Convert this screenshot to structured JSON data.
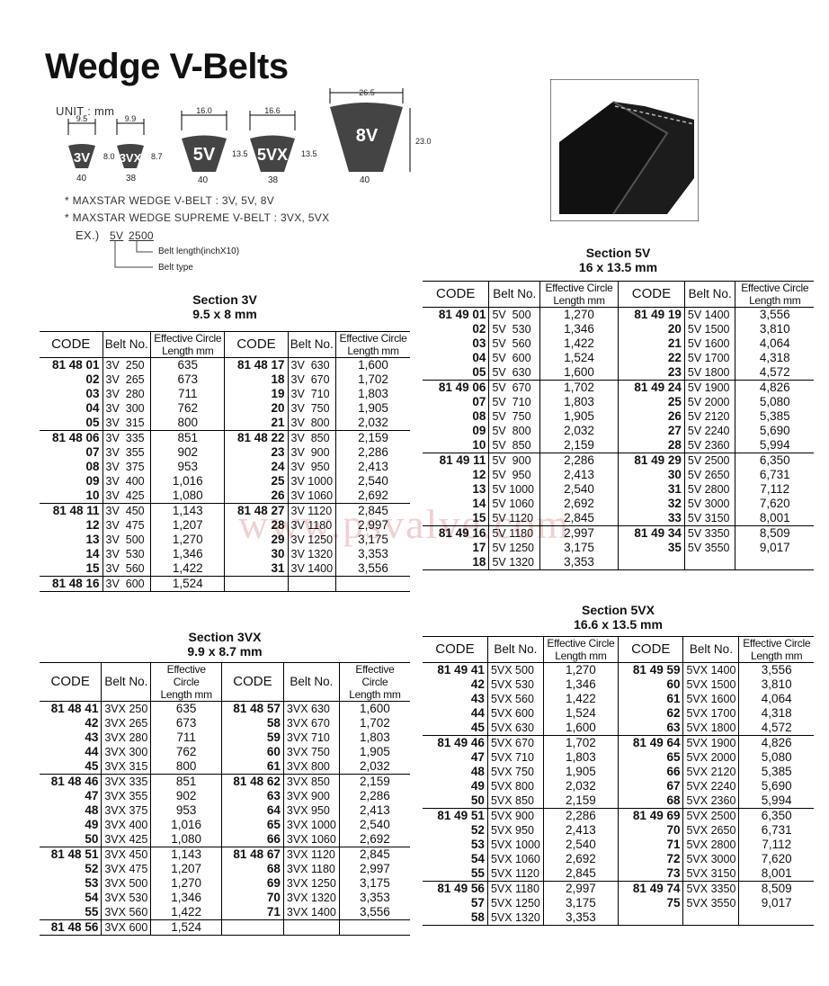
{
  "title": "Wedge V-Belts",
  "diagram": {
    "unit_label": "UNIT : mm",
    "profiles": [
      {
        "name": "3V",
        "top_width": "9.5",
        "height": "8.0",
        "angle": "40"
      },
      {
        "name": "3VX",
        "top_width": "9.9",
        "height": "8.7",
        "angle": "38"
      },
      {
        "name": "5V",
        "top_width": "16.0",
        "height": "13.5",
        "angle": "40"
      },
      {
        "name": "5VX",
        "top_width": "16.6",
        "height": "13.5",
        "angle": "38"
      },
      {
        "name": "8V",
        "top_width": "26.5",
        "height": "23.0",
        "angle": "40"
      }
    ],
    "notes": [
      "* MAXSTAR WEDGE V-BELT : 3V, 5V, 8V",
      "* MAXSTAR WEDGE SUPREME V-BELT : 3VX, 5VX"
    ],
    "example": {
      "prefix": "EX.)",
      "type": "5V",
      "length": "2500",
      "length_desc": "Belt length(inchX10)",
      "type_desc": "Belt type"
    }
  },
  "watermark": "www.psvalve.com",
  "headers": {
    "code": "CODE",
    "belt": "Belt No.",
    "ecl1": "Effective Circle",
    "ecl2": "Length mm"
  },
  "tables": {
    "s3v": {
      "title": "Section 3V",
      "subtitle": "9.5 x 8 mm",
      "rows": [
        [
          "81 48 01",
          "3V  250",
          "635",
          "81 48 17",
          "3V  630",
          "1,600"
        ],
        [
          "02",
          "3V  265",
          "673",
          "18",
          "3V  670",
          "1,702"
        ],
        [
          "03",
          "3V  280",
          "711",
          "19",
          "3V  710",
          "1,803"
        ],
        [
          "04",
          "3V  300",
          "762",
          "20",
          "3V  750",
          "1,905"
        ],
        [
          "05",
          "3V  315",
          "800",
          "21",
          "3V  800",
          "2,032"
        ],
        [
          "81 48 06",
          "3V  335",
          "851",
          "81 48 22",
          "3V  850",
          "2,159"
        ],
        [
          "07",
          "3V  355",
          "902",
          "23",
          "3V  900",
          "2,286"
        ],
        [
          "08",
          "3V  375",
          "953",
          "24",
          "3V  950",
          "2,413"
        ],
        [
          "09",
          "3V  400",
          "1,016",
          "25",
          "3V 1000",
          "2,540"
        ],
        [
          "10",
          "3V  425",
          "1,080",
          "26",
          "3V 1060",
          "2,692"
        ],
        [
          "81 48 11",
          "3V  450",
          "1,143",
          "81 48 27",
          "3V 1120",
          "2,845"
        ],
        [
          "12",
          "3V  475",
          "1,207",
          "28",
          "3V 1180",
          "2,997"
        ],
        [
          "13",
          "3V  500",
          "1,270",
          "29",
          "3V 1250",
          "3,175"
        ],
        [
          "14",
          "3V  530",
          "1,346",
          "30",
          "3V 1320",
          "3,353"
        ],
        [
          "15",
          "3V  560",
          "1,422",
          "31",
          "3V 1400",
          "3,556"
        ],
        [
          "81 48 16",
          "3V  600",
          "1,524",
          "",
          "",
          ""
        ]
      ]
    },
    "s5v": {
      "title": "Section 5V",
      "subtitle": "16 x 13.5 mm",
      "rows": [
        [
          "81 49 01",
          "5V  500",
          "1,270",
          "81 49 19",
          "5V 1400",
          "3,556"
        ],
        [
          "02",
          "5V  530",
          "1,346",
          "20",
          "5V 1500",
          "3,810"
        ],
        [
          "03",
          "5V  560",
          "1,422",
          "21",
          "5V 1600",
          "4,064"
        ],
        [
          "04",
          "5V  600",
          "1,524",
          "22",
          "5V 1700",
          "4,318"
        ],
        [
          "05",
          "5V  630",
          "1,600",
          "23",
          "5V 1800",
          "4,572"
        ],
        [
          "81 49 06",
          "5V  670",
          "1,702",
          "81 49 24",
          "5V 1900",
          "4,826"
        ],
        [
          "07",
          "5V  710",
          "1,803",
          "25",
          "5V 2000",
          "5,080"
        ],
        [
          "08",
          "5V  750",
          "1,905",
          "26",
          "5V 2120",
          "5,385"
        ],
        [
          "09",
          "5V  800",
          "2,032",
          "27",
          "5V 2240",
          "5,690"
        ],
        [
          "10",
          "5V  850",
          "2,159",
          "28",
          "5V 2360",
          "5,994"
        ],
        [
          "81 49 11",
          "5V  900",
          "2,286",
          "81 49 29",
          "5V 2500",
          "6,350"
        ],
        [
          "12",
          "5V  950",
          "2,413",
          "30",
          "5V 2650",
          "6,731"
        ],
        [
          "13",
          "5V 1000",
          "2,540",
          "31",
          "5V 2800",
          "7,112"
        ],
        [
          "14",
          "5V 1060",
          "2,692",
          "32",
          "5V 3000",
          "7,620"
        ],
        [
          "15",
          "5V 1120",
          "2,845",
          "33",
          "5V 3150",
          "8,001"
        ],
        [
          "81 49 16",
          "5V 1180",
          "2,997",
          "81 49 34",
          "5V 3350",
          "8,509"
        ],
        [
          "17",
          "5V 1250",
          "3,175",
          "35",
          "5V 3550",
          "9,017"
        ],
        [
          "18",
          "5V 1320",
          "3,353",
          "",
          "",
          ""
        ]
      ]
    },
    "s3vx": {
      "title": "Section 3VX",
      "subtitle": "9.9 x 8.7 mm",
      "rows": [
        [
          "81 48 41",
          "3VX 250",
          "635",
          "81 48 57",
          "3VX 630",
          "1,600"
        ],
        [
          "42",
          "3VX 265",
          "673",
          "58",
          "3VX 670",
          "1,702"
        ],
        [
          "43",
          "3VX 280",
          "711",
          "59",
          "3VX 710",
          "1,803"
        ],
        [
          "44",
          "3VX 300",
          "762",
          "60",
          "3VX 750",
          "1,905"
        ],
        [
          "45",
          "3VX 315",
          "800",
          "61",
          "3VX 800",
          "2,032"
        ],
        [
          "81 48 46",
          "3VX 335",
          "851",
          "81 48 62",
          "3VX 850",
          "2,159"
        ],
        [
          "47",
          "3VX 355",
          "902",
          "63",
          "3VX 900",
          "2,286"
        ],
        [
          "48",
          "3VX 375",
          "953",
          "64",
          "3VX 950",
          "2,413"
        ],
        [
          "49",
          "3VX 400",
          "1,016",
          "65",
          "3VX 1000",
          "2,540"
        ],
        [
          "50",
          "3VX 425",
          "1,080",
          "66",
          "3VX 1060",
          "2,692"
        ],
        [
          "81 48 51",
          "3VX 450",
          "1,143",
          "81 48 67",
          "3VX 1120",
          "2,845"
        ],
        [
          "52",
          "3VX 475",
          "1,207",
          "68",
          "3VX 1180",
          "2,997"
        ],
        [
          "53",
          "3VX 500",
          "1,270",
          "69",
          "3VX 1250",
          "3,175"
        ],
        [
          "54",
          "3VX 530",
          "1,346",
          "70",
          "3VX 1320",
          "3,353"
        ],
        [
          "55",
          "3VX 560",
          "1,422",
          "71",
          "3VX 1400",
          "3,556"
        ],
        [
          "81 48 56",
          "3VX 600",
          "1,524",
          "",
          "",
          ""
        ]
      ]
    },
    "s5vx": {
      "title": "Section 5VX",
      "subtitle": "16.6 x 13.5 mm",
      "rows": [
        [
          "81 49 41",
          "5VX 500",
          "1,270",
          "81 49 59",
          "5VX 1400",
          "3,556"
        ],
        [
          "42",
          "5VX 530",
          "1,346",
          "60",
          "5VX 1500",
          "3,810"
        ],
        [
          "43",
          "5VX 560",
          "1,422",
          "61",
          "5VX 1600",
          "4,064"
        ],
        [
          "44",
          "5VX 600",
          "1,524",
          "62",
          "5VX 1700",
          "4,318"
        ],
        [
          "45",
          "5VX 630",
          "1,600",
          "63",
          "5VX 1800",
          "4,572"
        ],
        [
          "81 49 46",
          "5VX 670",
          "1,702",
          "81 49 64",
          "5VX 1900",
          "4,826"
        ],
        [
          "47",
          "5VX 710",
          "1,803",
          "65",
          "5VX 2000",
          "5,080"
        ],
        [
          "48",
          "5VX 750",
          "1,905",
          "66",
          "5VX 2120",
          "5,385"
        ],
        [
          "49",
          "5VX 800",
          "2,032",
          "67",
          "5VX 2240",
          "5,690"
        ],
        [
          "50",
          "5VX 850",
          "2,159",
          "68",
          "5VX 2360",
          "5,994"
        ],
        [
          "81 49 51",
          "5VX 900",
          "2,286",
          "81 49 69",
          "5VX 2500",
          "6,350"
        ],
        [
          "52",
          "5VX 950",
          "2,413",
          "70",
          "5VX 2650",
          "6,731"
        ],
        [
          "53",
          "5VX 1000",
          "2,540",
          "71",
          "5VX 2800",
          "7,112"
        ],
        [
          "54",
          "5VX 1060",
          "2,692",
          "72",
          "5VX 3000",
          "7,620"
        ],
        [
          "55",
          "5VX 1120",
          "2,845",
          "73",
          "5VX 3150",
          "8,001"
        ],
        [
          "81 49 56",
          "5VX 1180",
          "2,997",
          "81 49 74",
          "5VX 3350",
          "8,509"
        ],
        [
          "57",
          "5VX 1250",
          "3,175",
          "75",
          "5VX 3550",
          "9,017"
        ],
        [
          "58",
          "5VX 1320",
          "3,353",
          "",
          "",
          ""
        ]
      ]
    }
  }
}
